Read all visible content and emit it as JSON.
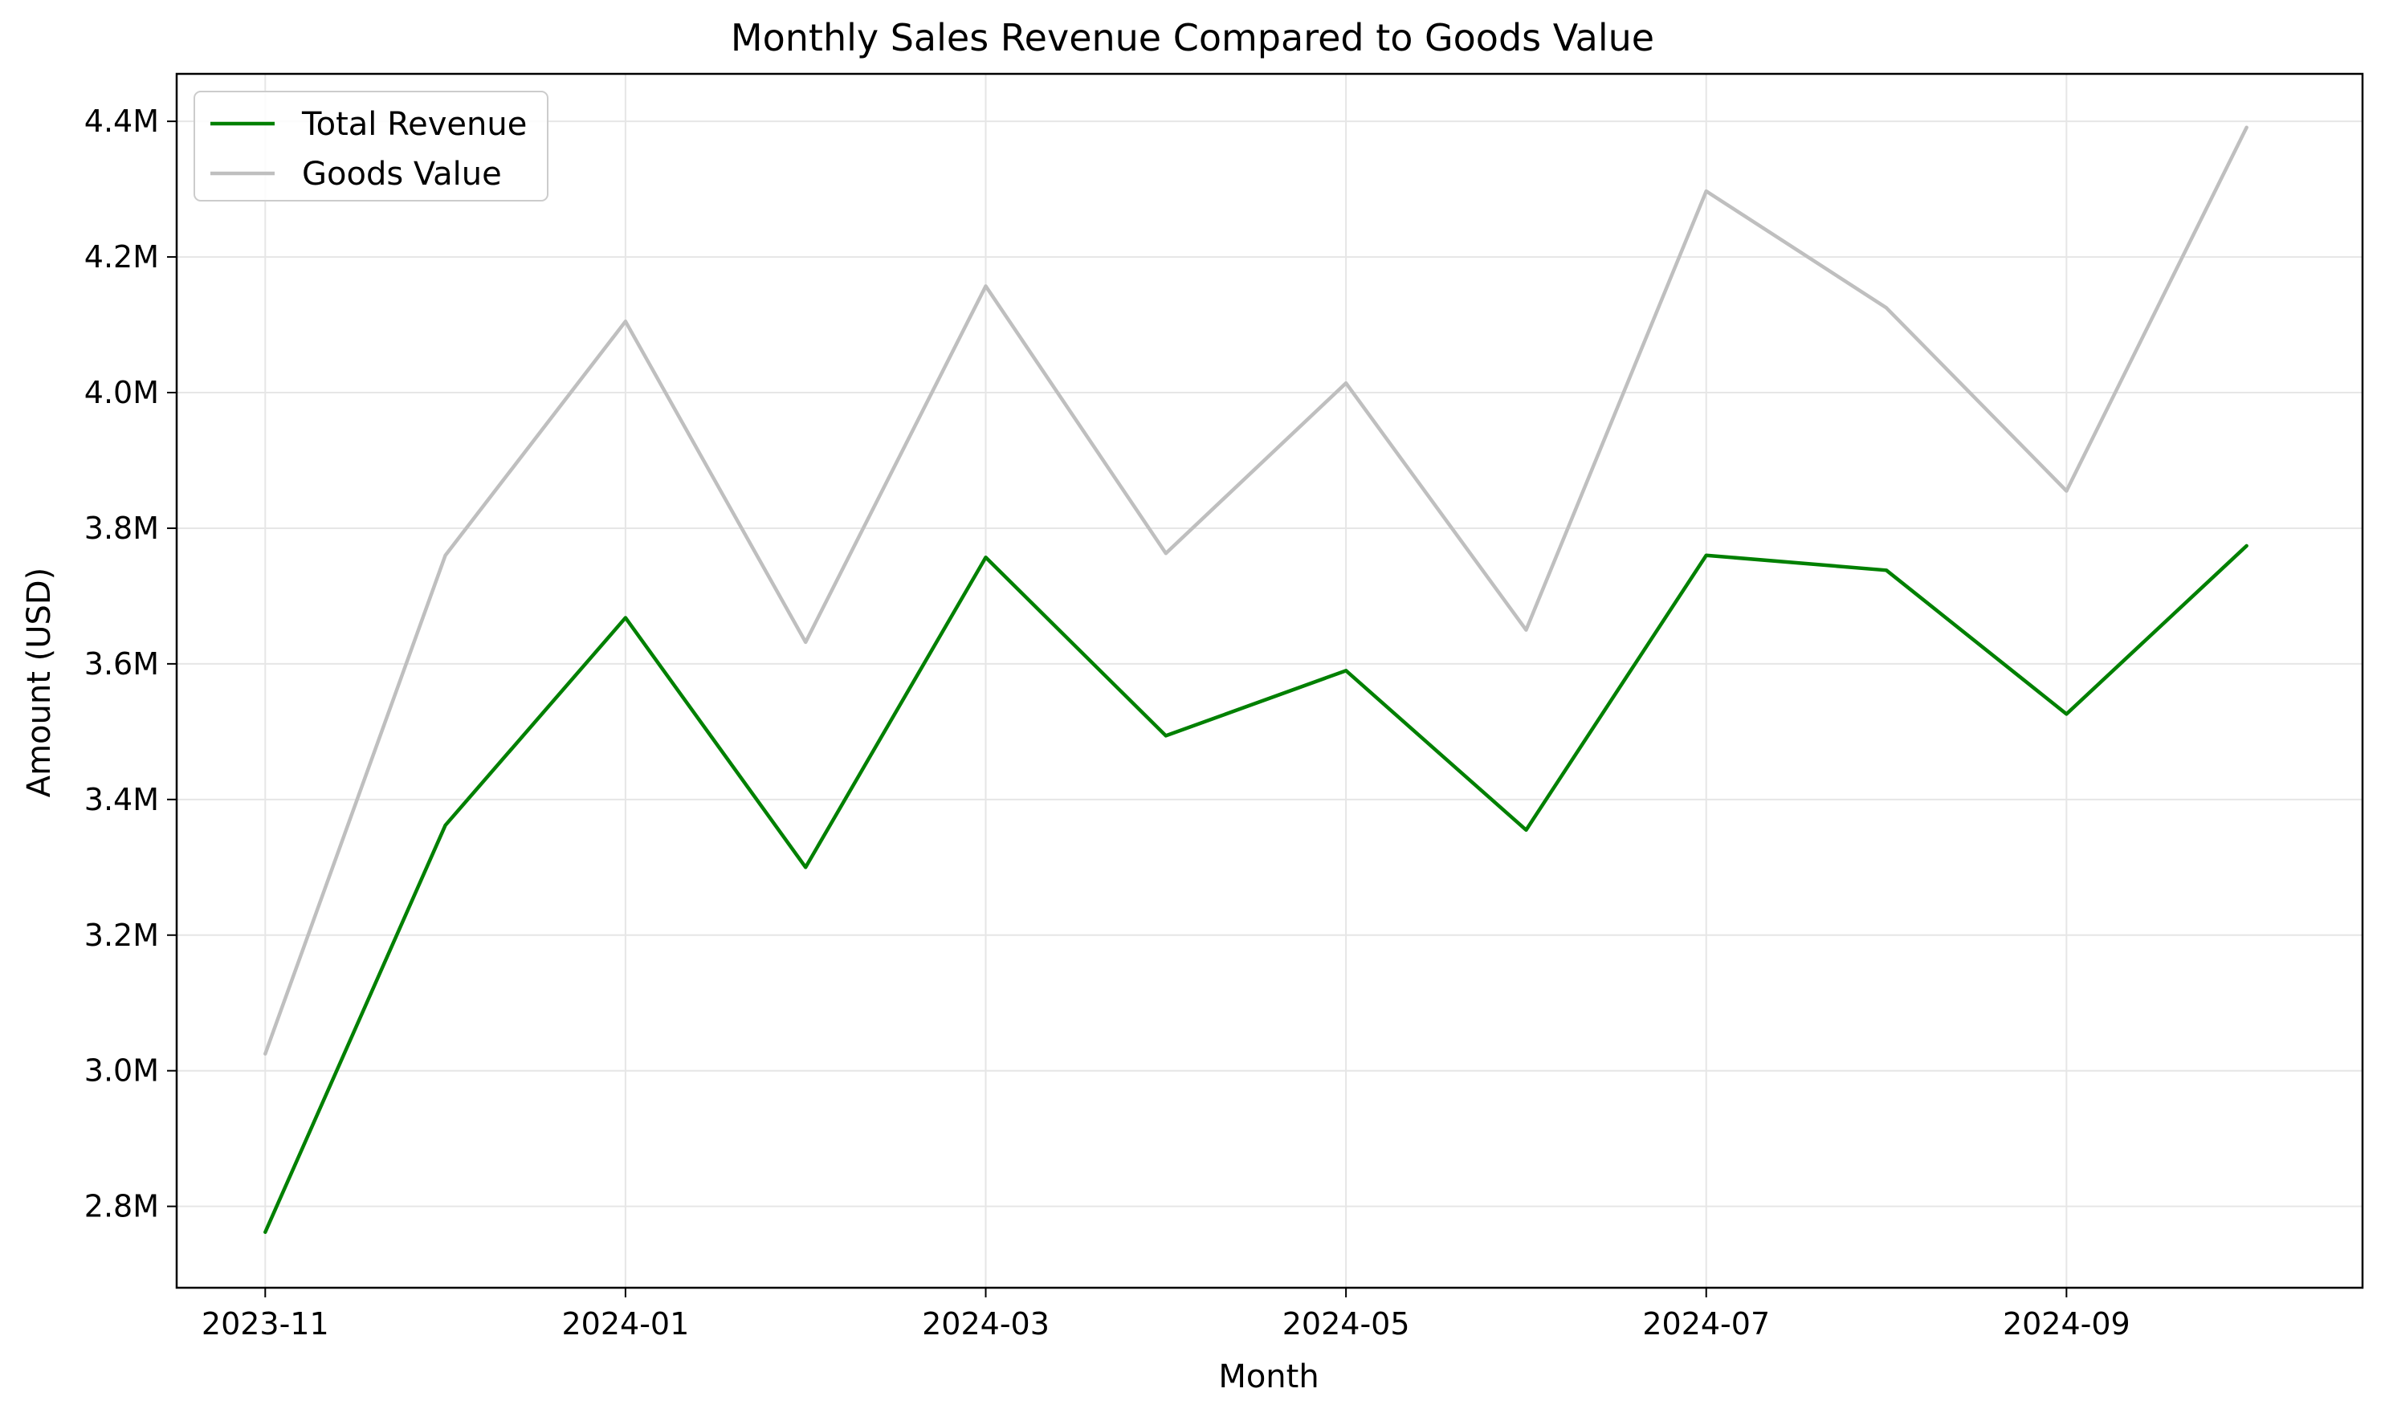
{
  "chart_data": {
    "type": "line",
    "title": "Monthly Sales Revenue Compared to Goods Value",
    "xlabel": "Month",
    "ylabel": "Amount (USD)",
    "x": [
      "2023-11",
      "2023-12",
      "2024-01",
      "2024-02",
      "2024-03",
      "2024-04",
      "2024-05",
      "2024-06",
      "2024-07",
      "2024-08",
      "2024-09",
      "2024-10"
    ],
    "x_tick_labels": [
      "2023-11",
      "2024-01",
      "2024-03",
      "2024-05",
      "2024-07",
      "2024-09"
    ],
    "x_tick_values": [
      "2023-11",
      "2024-01",
      "2024-03",
      "2024-05",
      "2024-07",
      "2024-09"
    ],
    "y_tick_values": [
      2800000,
      3000000,
      3200000,
      3400000,
      3600000,
      3800000,
      4000000,
      4200000,
      4400000
    ],
    "y_tick_labels": [
      "2.8M",
      "3.0M",
      "3.2M",
      "3.4M",
      "3.6M",
      "3.8M",
      "4.0M",
      "4.2M",
      "4.4M"
    ],
    "ylim": [
      2680000,
      4470000
    ],
    "grid": true,
    "legend_position": "top-left",
    "series": [
      {
        "name": "Total Revenue",
        "color": "#008000",
        "values": [
          2762000,
          3362000,
          3668000,
          3300000,
          3757000,
          3494000,
          3590000,
          3355000,
          3760000,
          3738000,
          3526000,
          3774000
        ]
      },
      {
        "name": "Goods Value",
        "color": "#bfbfbf",
        "values": [
          3025000,
          3760000,
          4105000,
          3632000,
          4157000,
          3763000,
          4014000,
          3650000,
          4297000,
          4125000,
          3855000,
          4391000
        ]
      }
    ]
  }
}
